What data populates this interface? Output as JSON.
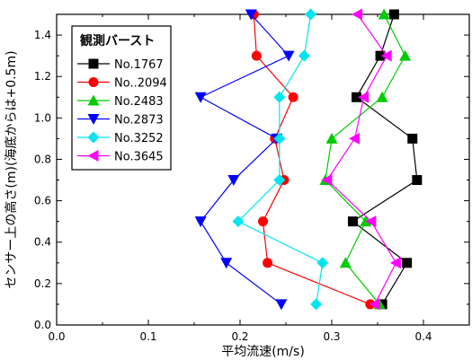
{
  "chart_data": {
    "type": "line",
    "xlabel": "平均流速(m/s)",
    "ylabel": "センサー上の高さ(m)(海底からは+0.5m)",
    "xlim": [
      0.0,
      0.45
    ],
    "ylim": [
      0.0,
      1.5
    ],
    "x_ticks": [
      "0.0",
      "0.1",
      "0.2",
      "0.3",
      "0.4"
    ],
    "y_ticks": [
      "0.0",
      "0.2",
      "0.4",
      "0.6",
      "0.8",
      "1.0",
      "1.2",
      "1.4"
    ],
    "grid": false,
    "legend": {
      "title": "観測バースト",
      "position": "top-left"
    },
    "heights": [
      0.1,
      0.3,
      0.5,
      0.7,
      0.9,
      1.1,
      1.3,
      1.5
    ],
    "series": [
      {
        "name": "No.1767",
        "color": "#000000",
        "marker": "square",
        "x": [
          0.355,
          0.382,
          0.323,
          0.393,
          0.388,
          0.327,
          0.353,
          0.368
        ]
      },
      {
        "name": "No..2094",
        "color": "#ff0000",
        "marker": "circle",
        "x": [
          0.342,
          0.23,
          0.225,
          0.248,
          0.238,
          0.258,
          0.218,
          0.215
        ]
      },
      {
        "name": "No.2483",
        "color": "#00cc00",
        "marker": "triangle-up",
        "x": [
          0.352,
          0.315,
          0.337,
          0.293,
          0.3,
          0.355,
          0.38,
          0.357
        ]
      },
      {
        "name": "No.2873",
        "color": "#0000ff",
        "marker": "triangle-down",
        "x": [
          0.245,
          0.185,
          0.157,
          0.193,
          0.24,
          0.157,
          0.253,
          0.212
        ]
      },
      {
        "name": "No.3252",
        "color": "#00e5ee",
        "marker": "diamond",
        "x": [
          0.283,
          0.29,
          0.198,
          0.243,
          0.243,
          0.243,
          0.27,
          0.277
        ]
      },
      {
        "name": "No.3645",
        "color": "#ff00ff",
        "marker": "triangle-left",
        "x": [
          0.347,
          0.37,
          0.343,
          0.295,
          0.325,
          0.335,
          0.36,
          0.328
        ]
      }
    ]
  }
}
